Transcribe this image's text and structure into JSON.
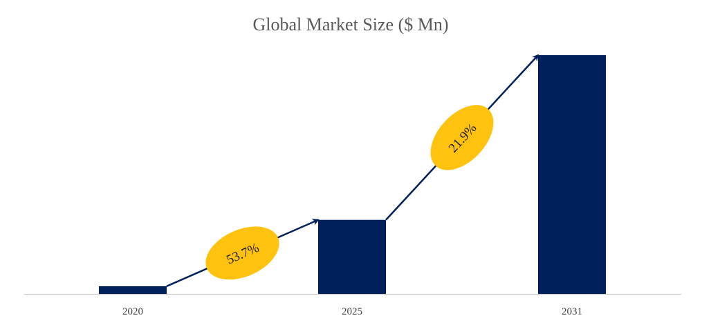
{
  "chart_data": {
    "type": "bar",
    "title": "Global Market Size ($ Mn)",
    "xlabel": "",
    "ylabel": "",
    "categories": [
      "2020",
      "2025",
      "2031"
    ],
    "values": [
      3.2,
      31.0,
      100
    ],
    "ylim": [
      0,
      100
    ],
    "grid": false,
    "legend": "none",
    "annotations": [
      {
        "text": "53.7%",
        "from": "2020",
        "to": "2025"
      },
      {
        "text": "21.9%",
        "from": "2025",
        "to": "2031"
      }
    ],
    "colors": {
      "bar": "#00205b",
      "arrow": "#00205b",
      "badge": "#ffc20e",
      "axis": "#bfbfbf"
    }
  }
}
